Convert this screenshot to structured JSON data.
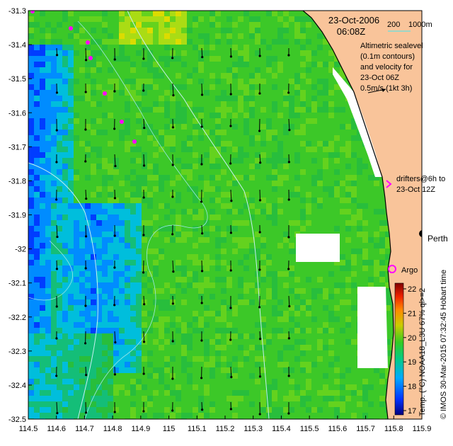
{
  "date": "23-Oct-2006",
  "time": "06:08Z",
  "contour_legend": {
    "depth_a": "200",
    "depth_b": "1000m"
  },
  "sealevel_note": [
    "Altimetric sealevel",
    "(0.1m contours)",
    "and velocity for",
    "23-Oct 06Z"
  ],
  "velocity_scale": "0.5m/s (1kt 3h)",
  "drifters_note": [
    "drifters@6h to",
    "23-Oct 12Z"
  ],
  "place_labels": {
    "city": "Perth",
    "float": "Argo"
  },
  "colorbar": {
    "ticks": [
      "22",
      "21",
      "20",
      "19",
      "18",
      "17"
    ],
    "label": "Temp. (°C) NOAA18_L3U 67% ql>=2"
  },
  "credit": "© IMOS 30-Mar-2015 07:32:45 Hobart time",
  "axes": {
    "x_ticks": [
      "114.5",
      "114.6",
      "114.7",
      "114.8",
      "114.9",
      "115",
      "115.1",
      "115.2",
      "115.3",
      "115.4",
      "115.5",
      "115.6",
      "115.7",
      "115.8",
      "115.9"
    ],
    "y_ticks": [
      "-31.3",
      "-31.4",
      "-31.5",
      "-31.6",
      "-31.7",
      "-31.8",
      "-31.9",
      "-32",
      "-32.1",
      "-32.2",
      "-32.3",
      "-32.4",
      "-32.5"
    ],
    "lon_range": [
      114.5,
      115.9
    ],
    "lat_range": [
      -32.5,
      -31.3
    ]
  },
  "colors": {
    "land": "#f9c49a",
    "contour": "#c6f0f0",
    "drifter": "#ff00ff",
    "argo": "#ff00ff"
  }
}
